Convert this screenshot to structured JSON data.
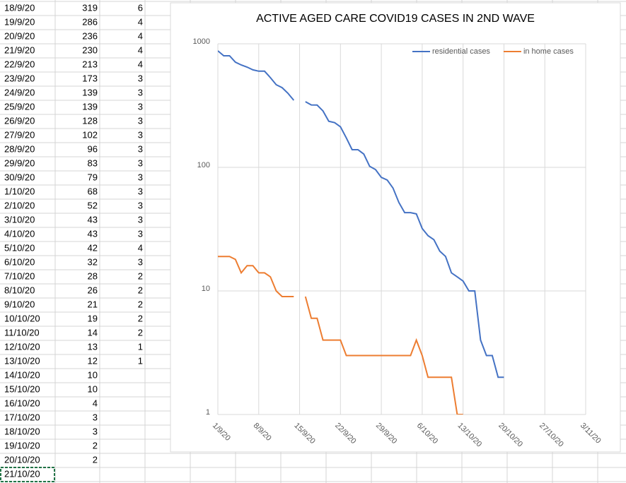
{
  "table": {
    "rows": [
      [
        "18/9/20",
        319,
        6
      ],
      [
        "19/9/20",
        286,
        4
      ],
      [
        "20/9/20",
        236,
        4
      ],
      [
        "21/9/20",
        230,
        4
      ],
      [
        "22/9/20",
        213,
        4
      ],
      [
        "23/9/20",
        173,
        3
      ],
      [
        "24/9/20",
        139,
        3
      ],
      [
        "25/9/20",
        139,
        3
      ],
      [
        "26/9/20",
        128,
        3
      ],
      [
        "27/9/20",
        102,
        3
      ],
      [
        "28/9/20",
        96,
        3
      ],
      [
        "29/9/20",
        83,
        3
      ],
      [
        "30/9/20",
        79,
        3
      ],
      [
        "1/10/20",
        68,
        3
      ],
      [
        "2/10/20",
        52,
        3
      ],
      [
        "3/10/20",
        43,
        3
      ],
      [
        "4/10/20",
        43,
        3
      ],
      [
        "5/10/20",
        42,
        4
      ],
      [
        "6/10/20",
        32,
        3
      ],
      [
        "7/10/20",
        28,
        2
      ],
      [
        "8/10/20",
        26,
        2
      ],
      [
        "9/10/20",
        21,
        2
      ],
      [
        "10/10/20",
        19,
        2
      ],
      [
        "11/10/20",
        14,
        2
      ],
      [
        "12/10/20",
        13,
        1
      ],
      [
        "13/10/20",
        12,
        1
      ],
      [
        "14/10/20",
        10
      ],
      [
        "15/10/20",
        10
      ],
      [
        "16/10/20",
        4
      ],
      [
        "17/10/20",
        3
      ],
      [
        "18/10/20",
        3
      ],
      [
        "19/10/20",
        2
      ],
      [
        "20/10/20",
        2
      ],
      [
        "21/10/20"
      ]
    ]
  },
  "chart_data": {
    "type": "line",
    "title": "ACTIVE AGED CARE COVID19 CASES IN 2ND WAVE",
    "x": [
      "1/9/20",
      "2/9/20",
      "3/9/20",
      "4/9/20",
      "5/9/20",
      "6/9/20",
      "7/9/20",
      "8/9/20",
      "9/9/20",
      "10/9/20",
      "11/9/20",
      "12/9/20",
      "13/9/20",
      "14/9/20",
      "15/9/20",
      "16/9/20",
      "17/9/20",
      "18/9/20",
      "19/9/20",
      "20/9/20",
      "21/9/20",
      "22/9/20",
      "23/9/20",
      "24/9/20",
      "25/9/20",
      "26/9/20",
      "27/9/20",
      "28/9/20",
      "29/9/20",
      "30/9/20",
      "1/10/20",
      "2/10/20",
      "3/10/20",
      "4/10/20",
      "5/10/20",
      "6/10/20",
      "7/10/20",
      "8/10/20",
      "9/10/20",
      "10/10/20",
      "11/10/20",
      "12/10/20",
      "13/10/20",
      "14/10/20",
      "15/10/20",
      "16/10/20",
      "17/10/20",
      "18/10/20",
      "19/10/20",
      "20/10/20"
    ],
    "series": [
      {
        "name": "residential cases",
        "color": "#4472c4",
        "values": [
          877,
          800,
          800,
          710,
          674,
          648,
          615,
          600,
          600,
          532,
          466,
          442,
          398,
          349,
          null,
          340,
          320,
          319,
          286,
          236,
          230,
          213,
          173,
          139,
          139,
          128,
          102,
          96,
          83,
          79,
          68,
          52,
          43,
          43,
          42,
          32,
          28,
          26,
          21,
          19,
          14,
          13,
          12,
          10,
          10,
          4,
          3,
          3,
          2,
          2
        ]
      },
      {
        "name": "in home cases",
        "color": "#ed7d31",
        "values": [
          19,
          19,
          19,
          18,
          14,
          16,
          16,
          14,
          14,
          13,
          10,
          9,
          9,
          9,
          null,
          9,
          6,
          6,
          4,
          4,
          4,
          4,
          3,
          3,
          3,
          3,
          3,
          3,
          3,
          3,
          3,
          3,
          3,
          3,
          4,
          3,
          2,
          2,
          2,
          2,
          2,
          1,
          1,
          null,
          null,
          null,
          null,
          null,
          null,
          null
        ]
      }
    ],
    "ylog": true,
    "ylim": [
      1,
      1000
    ],
    "yticks": [
      1,
      10,
      100,
      1000
    ],
    "xlim": [
      "1/9/20",
      "3/11/20"
    ],
    "xticks": [
      "1/9/20",
      "8/9/20",
      "15/9/20",
      "22/9/20",
      "29/9/20",
      "6/10/20",
      "13/10/20",
      "20/10/20",
      "27/10/20",
      "3/11/20"
    ],
    "grid": true,
    "legend": "top-right"
  }
}
